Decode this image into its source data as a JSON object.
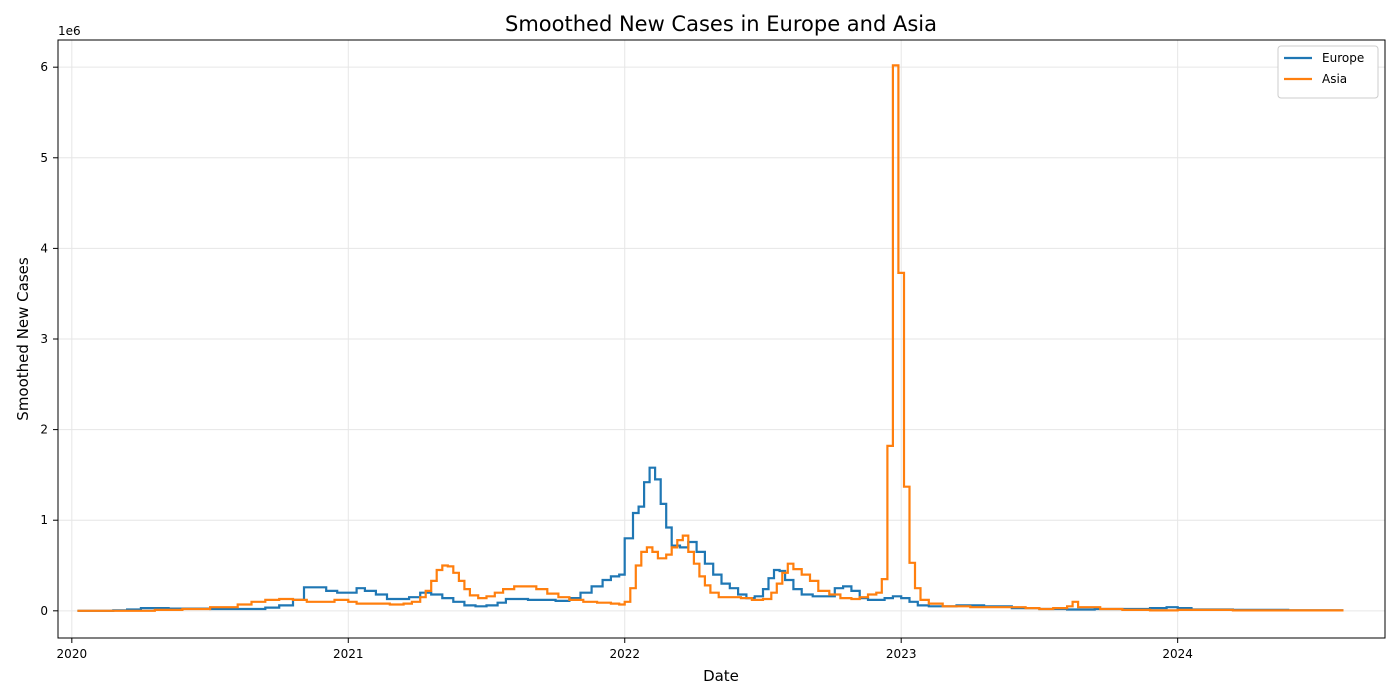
{
  "chart_data": {
    "type": "line",
    "title": "Smoothed New Cases in Europe and Asia",
    "xlabel": "Date",
    "ylabel": "Smoothed New Cases",
    "y_offset_label": "1e6",
    "y_scale": 1000000,
    "xlim": [
      2019.95,
      2024.75
    ],
    "ylim": [
      -0.3,
      6.3
    ],
    "x_ticks": [
      2020,
      2021,
      2022,
      2023,
      2024
    ],
    "x_tick_labels": [
      "2020",
      "2021",
      "2022",
      "2023",
      "2024"
    ],
    "y_ticks": [
      0,
      1,
      2,
      3,
      4,
      5,
      6
    ],
    "y_tick_labels": [
      "0",
      "1",
      "2",
      "3",
      "4",
      "5",
      "6"
    ],
    "grid": true,
    "legend_position": "top-right",
    "series": [
      {
        "name": "Europe",
        "color": "#1f77b4",
        "points": [
          [
            2020.02,
            0.0
          ],
          [
            2020.15,
            0.005
          ],
          [
            2020.2,
            0.015
          ],
          [
            2020.25,
            0.03
          ],
          [
            2020.35,
            0.025
          ],
          [
            2020.5,
            0.02
          ],
          [
            2020.6,
            0.02
          ],
          [
            2020.7,
            0.035
          ],
          [
            2020.75,
            0.06
          ],
          [
            2020.8,
            0.12
          ],
          [
            2020.84,
            0.26
          ],
          [
            2020.88,
            0.26
          ],
          [
            2020.92,
            0.22
          ],
          [
            2020.96,
            0.2
          ],
          [
            2021.0,
            0.2
          ],
          [
            2021.03,
            0.25
          ],
          [
            2021.06,
            0.22
          ],
          [
            2021.1,
            0.18
          ],
          [
            2021.14,
            0.13
          ],
          [
            2021.18,
            0.13
          ],
          [
            2021.22,
            0.15
          ],
          [
            2021.26,
            0.2
          ],
          [
            2021.3,
            0.18
          ],
          [
            2021.34,
            0.14
          ],
          [
            2021.38,
            0.1
          ],
          [
            2021.42,
            0.06
          ],
          [
            2021.46,
            0.05
          ],
          [
            2021.5,
            0.06
          ],
          [
            2021.54,
            0.09
          ],
          [
            2021.57,
            0.13
          ],
          [
            2021.6,
            0.13
          ],
          [
            2021.65,
            0.12
          ],
          [
            2021.7,
            0.12
          ],
          [
            2021.75,
            0.11
          ],
          [
            2021.8,
            0.14
          ],
          [
            2021.84,
            0.2
          ],
          [
            2021.88,
            0.27
          ],
          [
            2021.92,
            0.34
          ],
          [
            2021.95,
            0.38
          ],
          [
            2021.98,
            0.4
          ],
          [
            2022.0,
            0.8
          ],
          [
            2022.03,
            1.08
          ],
          [
            2022.05,
            1.15
          ],
          [
            2022.07,
            1.42
          ],
          [
            2022.09,
            1.58
          ],
          [
            2022.11,
            1.45
          ],
          [
            2022.13,
            1.18
          ],
          [
            2022.15,
            0.92
          ],
          [
            2022.17,
            0.72
          ],
          [
            2022.2,
            0.7
          ],
          [
            2022.23,
            0.76
          ],
          [
            2022.26,
            0.65
          ],
          [
            2022.29,
            0.52
          ],
          [
            2022.32,
            0.4
          ],
          [
            2022.35,
            0.3
          ],
          [
            2022.38,
            0.25
          ],
          [
            2022.41,
            0.18
          ],
          [
            2022.44,
            0.14
          ],
          [
            2022.47,
            0.16
          ],
          [
            2022.5,
            0.24
          ],
          [
            2022.52,
            0.36
          ],
          [
            2022.54,
            0.45
          ],
          [
            2022.56,
            0.44
          ],
          [
            2022.58,
            0.34
          ],
          [
            2022.61,
            0.24
          ],
          [
            2022.64,
            0.18
          ],
          [
            2022.68,
            0.16
          ],
          [
            2022.72,
            0.16
          ],
          [
            2022.76,
            0.25
          ],
          [
            2022.79,
            0.27
          ],
          [
            2022.82,
            0.22
          ],
          [
            2022.85,
            0.14
          ],
          [
            2022.88,
            0.12
          ],
          [
            2022.91,
            0.12
          ],
          [
            2022.94,
            0.14
          ],
          [
            2022.97,
            0.16
          ],
          [
            2023.0,
            0.14
          ],
          [
            2023.03,
            0.1
          ],
          [
            2023.06,
            0.06
          ],
          [
            2023.1,
            0.05
          ],
          [
            2023.15,
            0.05
          ],
          [
            2023.2,
            0.06
          ],
          [
            2023.3,
            0.05
          ],
          [
            2023.4,
            0.03
          ],
          [
            2023.5,
            0.02
          ],
          [
            2023.6,
            0.015
          ],
          [
            2023.7,
            0.02
          ],
          [
            2023.8,
            0.02
          ],
          [
            2023.9,
            0.03
          ],
          [
            2023.96,
            0.04
          ],
          [
            2024.0,
            0.03
          ],
          [
            2024.05,
            0.015
          ],
          [
            2024.2,
            0.01
          ],
          [
            2024.4,
            0.005
          ],
          [
            2024.6,
            0.005
          ]
        ]
      },
      {
        "name": "Asia",
        "color": "#ff7f0e",
        "points": [
          [
            2020.02,
            0.0
          ],
          [
            2020.15,
            0.0
          ],
          [
            2020.3,
            0.01
          ],
          [
            2020.4,
            0.02
          ],
          [
            2020.5,
            0.04
          ],
          [
            2020.6,
            0.07
          ],
          [
            2020.65,
            0.1
          ],
          [
            2020.7,
            0.12
          ],
          [
            2020.75,
            0.13
          ],
          [
            2020.8,
            0.12
          ],
          [
            2020.85,
            0.1
          ],
          [
            2020.9,
            0.1
          ],
          [
            2020.95,
            0.12
          ],
          [
            2021.0,
            0.1
          ],
          [
            2021.03,
            0.08
          ],
          [
            2021.1,
            0.08
          ],
          [
            2021.15,
            0.07
          ],
          [
            2021.2,
            0.08
          ],
          [
            2021.23,
            0.1
          ],
          [
            2021.26,
            0.15
          ],
          [
            2021.28,
            0.22
          ],
          [
            2021.3,
            0.33
          ],
          [
            2021.32,
            0.45
          ],
          [
            2021.34,
            0.5
          ],
          [
            2021.36,
            0.49
          ],
          [
            2021.38,
            0.42
          ],
          [
            2021.4,
            0.33
          ],
          [
            2021.42,
            0.24
          ],
          [
            2021.44,
            0.17
          ],
          [
            2021.47,
            0.14
          ],
          [
            2021.5,
            0.16
          ],
          [
            2021.53,
            0.2
          ],
          [
            2021.56,
            0.24
          ],
          [
            2021.6,
            0.27
          ],
          [
            2021.64,
            0.27
          ],
          [
            2021.68,
            0.24
          ],
          [
            2021.72,
            0.19
          ],
          [
            2021.76,
            0.15
          ],
          [
            2021.8,
            0.12
          ],
          [
            2021.85,
            0.1
          ],
          [
            2021.9,
            0.09
          ],
          [
            2021.95,
            0.08
          ],
          [
            2021.98,
            0.07
          ],
          [
            2022.0,
            0.1
          ],
          [
            2022.02,
            0.25
          ],
          [
            2022.04,
            0.5
          ],
          [
            2022.06,
            0.65
          ],
          [
            2022.08,
            0.7
          ],
          [
            2022.1,
            0.65
          ],
          [
            2022.12,
            0.58
          ],
          [
            2022.15,
            0.62
          ],
          [
            2022.17,
            0.7
          ],
          [
            2022.19,
            0.78
          ],
          [
            2022.21,
            0.83
          ],
          [
            2022.23,
            0.65
          ],
          [
            2022.25,
            0.52
          ],
          [
            2022.27,
            0.38
          ],
          [
            2022.29,
            0.28
          ],
          [
            2022.31,
            0.2
          ],
          [
            2022.34,
            0.15
          ],
          [
            2022.38,
            0.15
          ],
          [
            2022.42,
            0.14
          ],
          [
            2022.46,
            0.12
          ],
          [
            2022.5,
            0.13
          ],
          [
            2022.53,
            0.2
          ],
          [
            2022.55,
            0.3
          ],
          [
            2022.57,
            0.42
          ],
          [
            2022.59,
            0.52
          ],
          [
            2022.61,
            0.46
          ],
          [
            2022.64,
            0.4
          ],
          [
            2022.67,
            0.33
          ],
          [
            2022.7,
            0.22
          ],
          [
            2022.74,
            0.18
          ],
          [
            2022.78,
            0.14
          ],
          [
            2022.82,
            0.13
          ],
          [
            2022.85,
            0.15
          ],
          [
            2022.88,
            0.18
          ],
          [
            2022.91,
            0.2
          ],
          [
            2022.93,
            0.35
          ],
          [
            2022.95,
            1.82
          ],
          [
            2022.97,
            6.02
          ],
          [
            2022.99,
            3.73
          ],
          [
            2023.01,
            1.37
          ],
          [
            2023.03,
            0.53
          ],
          [
            2023.05,
            0.25
          ],
          [
            2023.07,
            0.12
          ],
          [
            2023.1,
            0.08
          ],
          [
            2023.15,
            0.05
          ],
          [
            2023.25,
            0.04
          ],
          [
            2023.35,
            0.04
          ],
          [
            2023.45,
            0.03
          ],
          [
            2023.5,
            0.02
          ],
          [
            2023.55,
            0.03
          ],
          [
            2023.6,
            0.05
          ],
          [
            2023.62,
            0.1
          ],
          [
            2023.64,
            0.04
          ],
          [
            2023.68,
            0.04
          ],
          [
            2023.72,
            0.02
          ],
          [
            2023.8,
            0.01
          ],
          [
            2023.9,
            0.005
          ],
          [
            2024.0,
            0.01
          ],
          [
            2024.2,
            0.005
          ],
          [
            2024.6,
            0.005
          ]
        ]
      }
    ]
  }
}
